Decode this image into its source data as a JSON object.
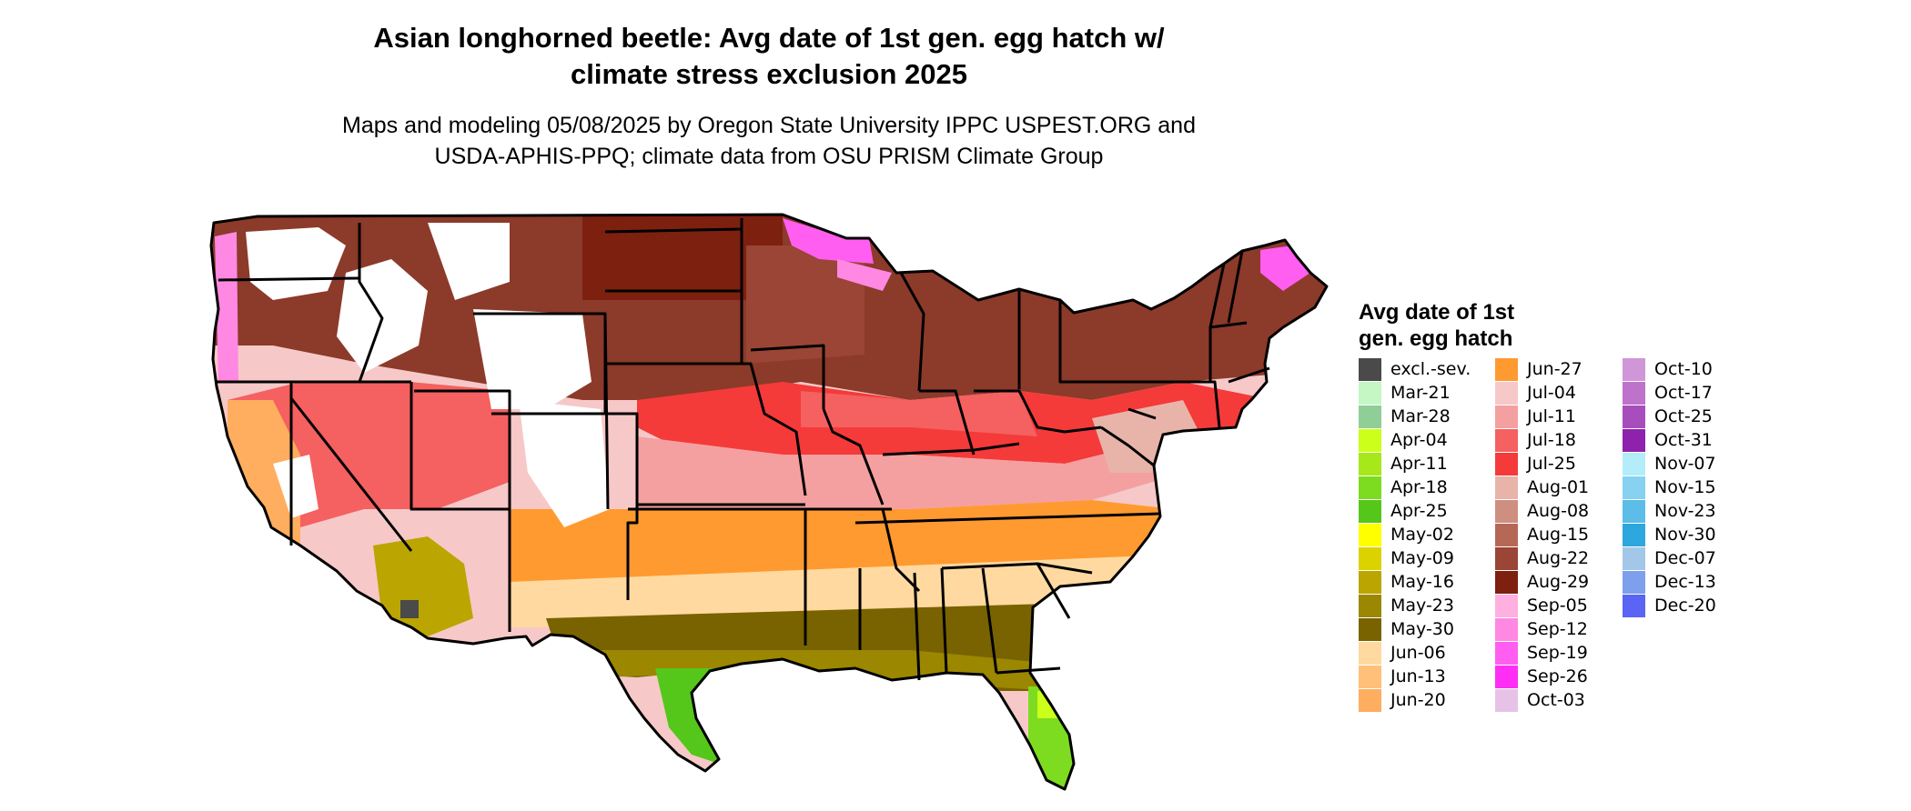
{
  "title": {
    "line1": "Asian longhorned beetle: Avg date of 1st gen. egg hatch w/",
    "line2": "climate stress exclusion 2025"
  },
  "subtitle": {
    "line1": "Maps and modeling 05/08/2025 by Oregon State University IPPC USPEST.ORG and",
    "line2": "USDA-APHIS-PPQ; climate data from OSU PRISM Climate Group"
  },
  "legend": {
    "title_line1": "Avg date of 1st",
    "title_line2": "gen. egg hatch",
    "columns": [
      [
        {
          "label": "excl.-sev.",
          "color": "#4a4a4a"
        },
        {
          "label": "Mar-21",
          "color": "#c4f7c4"
        },
        {
          "label": "Mar-28",
          "color": "#8fce96"
        },
        {
          "label": "Apr-04",
          "color": "#ccff1a"
        },
        {
          "label": "Apr-11",
          "color": "#a6e81a"
        },
        {
          "label": "Apr-18",
          "color": "#7ddc1f"
        },
        {
          "label": "Apr-25",
          "color": "#55c71a"
        },
        {
          "label": "May-02",
          "color": "#ffff00"
        },
        {
          "label": "May-09",
          "color": "#dcd200"
        },
        {
          "label": "May-16",
          "color": "#bba500"
        },
        {
          "label": "May-23",
          "color": "#9b8700"
        },
        {
          "label": "May-30",
          "color": "#786300"
        },
        {
          "label": "Jun-06",
          "color": "#ffd9a0"
        },
        {
          "label": "Jun-13",
          "color": "#ffc07a"
        },
        {
          "label": "Jun-20",
          "color": "#ffad5e"
        }
      ],
      [
        {
          "label": "Jun-27",
          "color": "#ff9a30"
        },
        {
          "label": "Jul-04",
          "color": "#f7c8c8"
        },
        {
          "label": "Jul-11",
          "color": "#f5a0a0"
        },
        {
          "label": "Jul-18",
          "color": "#f56060"
        },
        {
          "label": "Jul-25",
          "color": "#f53a3a"
        },
        {
          "label": "Aug-01",
          "color": "#e8b4aa"
        },
        {
          "label": "Aug-08",
          "color": "#cf8f80"
        },
        {
          "label": "Aug-15",
          "color": "#b56856"
        },
        {
          "label": "Aug-22",
          "color": "#9a4535"
        },
        {
          "label": "Aug-29",
          "color": "#7d2010"
        },
        {
          "label": "Sep-05",
          "color": "#ffafe0"
        },
        {
          "label": "Sep-12",
          "color": "#ff88e3"
        },
        {
          "label": "Sep-19",
          "color": "#ff5ef0"
        },
        {
          "label": "Sep-26",
          "color": "#ff2ef5"
        },
        {
          "label": "Oct-03",
          "color": "#e6c3e6"
        }
      ],
      [
        {
          "label": "Oct-10",
          "color": "#d096d8"
        },
        {
          "label": "Oct-17",
          "color": "#bf72cc"
        },
        {
          "label": "Oct-25",
          "color": "#a84ebc"
        },
        {
          "label": "Oct-31",
          "color": "#8e22ad"
        },
        {
          "label": "Nov-07",
          "color": "#b3edfa"
        },
        {
          "label": "Nov-15",
          "color": "#86d2f0"
        },
        {
          "label": "Nov-23",
          "color": "#5bbde8"
        },
        {
          "label": "Nov-30",
          "color": "#2ea6de"
        },
        {
          "label": "Dec-07",
          "color": "#a3c7e8"
        },
        {
          "label": "Dec-13",
          "color": "#7e9fec"
        },
        {
          "label": "Dec-20",
          "color": "#5a64f5"
        }
      ]
    ]
  }
}
